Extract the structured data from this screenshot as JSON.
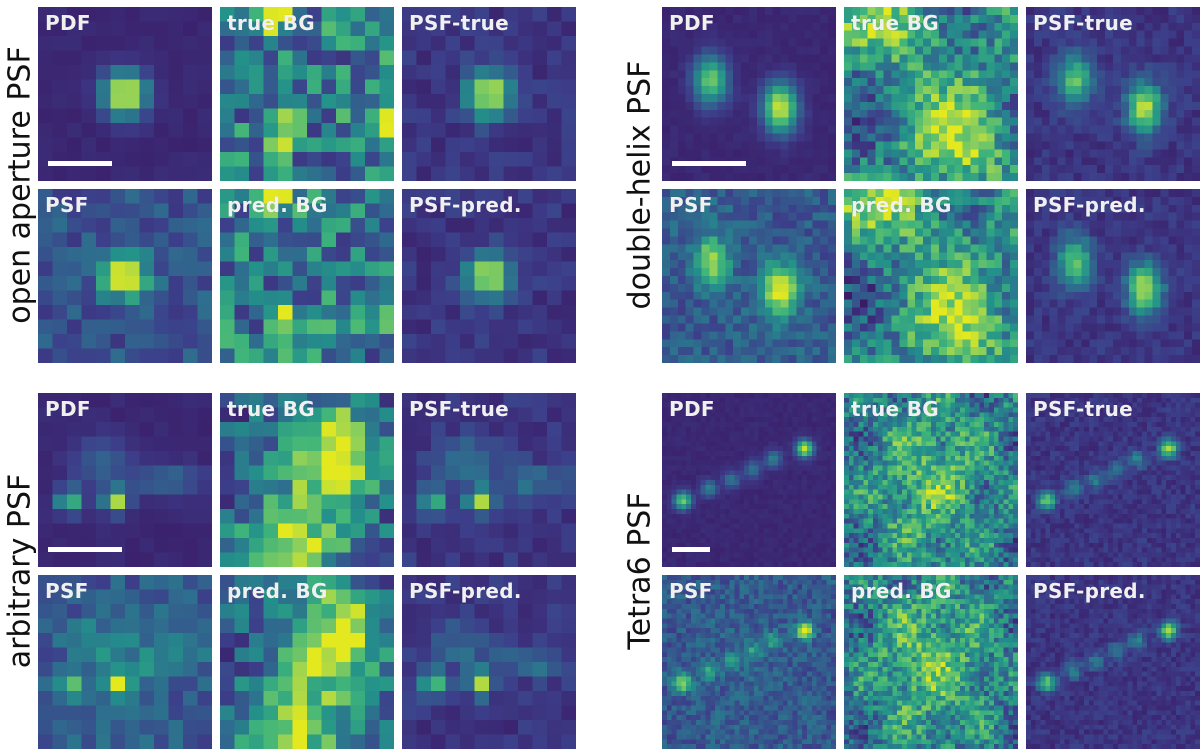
{
  "colormap": [
    "#3b1a66",
    "#3c3f8a",
    "#2f6b8e",
    "#23918a",
    "#3fb47a",
    "#8fd05a",
    "#e3e81f"
  ],
  "groups": [
    {
      "id": "open",
      "row_label": "open aperture PSF",
      "panels": [
        {
          "label": "PDF",
          "type": "pdf",
          "scalebar": true
        },
        {
          "label": "true BG",
          "type": "bg"
        },
        {
          "label": "PSF-true",
          "type": "psfbg"
        },
        {
          "label": "PSF",
          "type": "psfnoisy"
        },
        {
          "label": "pred. BG",
          "type": "bg"
        },
        {
          "label": "PSF-pred.",
          "type": "psfbg"
        }
      ]
    },
    {
      "id": "dh",
      "row_label": "double-helix PSF",
      "panels": [
        {
          "label": "PDF",
          "type": "pdf",
          "scalebar": true
        },
        {
          "label": "true BG",
          "type": "bg"
        },
        {
          "label": "PSF-true",
          "type": "psfbg"
        },
        {
          "label": "PSF",
          "type": "psfnoisy"
        },
        {
          "label": "pred. BG",
          "type": "bg"
        },
        {
          "label": "PSF-pred.",
          "type": "psfbg"
        }
      ]
    },
    {
      "id": "arb",
      "row_label": "arbitrary PSF",
      "panels": [
        {
          "label": "PDF",
          "type": "pdf",
          "scalebar": true
        },
        {
          "label": "true BG",
          "type": "bg"
        },
        {
          "label": "PSF-true",
          "type": "psfbg"
        },
        {
          "label": "PSF",
          "type": "psfnoisy"
        },
        {
          "label": "pred. BG",
          "type": "bg"
        },
        {
          "label": "PSF-pred.",
          "type": "psfbg"
        }
      ]
    },
    {
      "id": "tetra",
      "row_label": "Tetra6 PSF",
      "panels": [
        {
          "label": "PDF",
          "type": "pdf",
          "scalebar": true
        },
        {
          "label": "true BG",
          "type": "bg"
        },
        {
          "label": "PSF-true",
          "type": "psfbg"
        },
        {
          "label": "PSF",
          "type": "psfnoisy"
        },
        {
          "label": "pred. BG",
          "type": "bg"
        },
        {
          "label": "PSF-pred.",
          "type": "psfbg"
        }
      ]
    }
  ]
}
